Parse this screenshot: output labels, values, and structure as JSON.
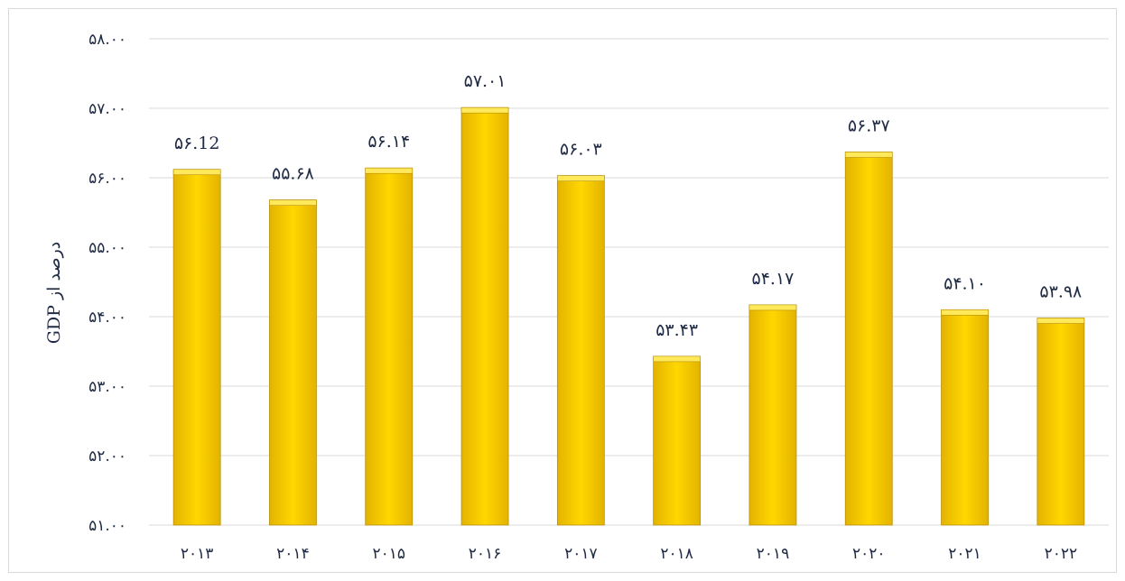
{
  "chart_data": {
    "type": "bar",
    "categories": [
      "۲۰۱۳",
      "۲۰۱۴",
      "۲۰۱۵",
      "۲۰۱۶",
      "۲۰۱۷",
      "۲۰۱۸",
      "۲۰۱۹",
      "۲۰۲۰",
      "۲۰۲۱",
      "۲۰۲۲"
    ],
    "values": [
      56.12,
      55.68,
      56.14,
      57.01,
      56.03,
      53.43,
      54.17,
      56.37,
      54.1,
      53.98
    ],
    "data_labels": [
      "۵۶.12",
      "۵۵.۶۸",
      "۵۶.۱۴",
      "۵۷.۰۱",
      "۵۶.۰۳",
      "۵۳.۴۳",
      "۵۴.۱۷",
      "۵۶.۳۷",
      "۵۴.۱۰",
      "۵۳.۹۸"
    ],
    "title": "",
    "xlabel": "",
    "ylabel": "درصد از GDP",
    "ylim": [
      51,
      58
    ],
    "yticks": [
      51,
      52,
      53,
      54,
      55,
      56,
      57,
      58
    ],
    "ytick_labels": [
      "۵۱.۰۰",
      "۵۲.۰۰",
      "۵۳.۰۰",
      "۵۴.۰۰",
      "۵۵.۰۰",
      "۵۶.۰۰",
      "۵۷.۰۰",
      "۵۸.۰۰"
    ],
    "grid": true,
    "legend": "none",
    "colors": {
      "bar_fill": "#FFD700",
      "bar_fill_dark": "#E3B300",
      "bar_top": "#FFE95A",
      "bar_edge": "#B8900A",
      "grid": "#d9d9d9",
      "text": "#1f2a44"
    }
  }
}
